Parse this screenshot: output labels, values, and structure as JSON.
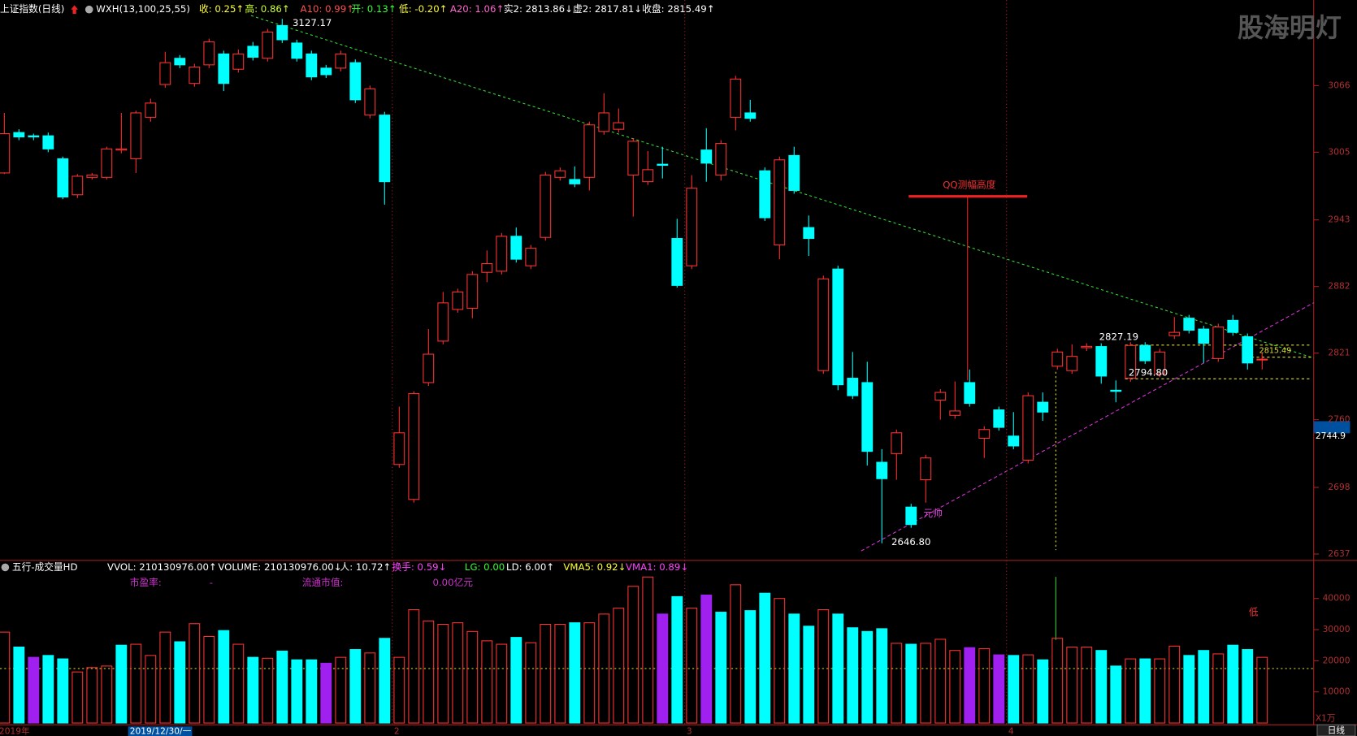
{
  "watermark": "股海明灯",
  "chart_data": [
    {
      "type": "candlestick",
      "title": "上证指数(日线)",
      "indicator_labels": [
        {
          "text": "WXH(13,100,25,55)",
          "color": "#ffffff"
        },
        {
          "text": "收: 0.25↑",
          "color": "#ffff33"
        },
        {
          "text": "高: 0.86↑",
          "color": "#ccff33"
        },
        {
          "text": "A10: 0.99↑",
          "color": "#ff5050"
        },
        {
          "text": "开: 0.13↑",
          "color": "#33ff33"
        },
        {
          "text": "低: -0.20↑",
          "color": "#ffff33"
        },
        {
          "text": "A20: 1.06↑",
          "color": "#ff66cc"
        },
        {
          "text": "实2: 2813.86↓",
          "color": "#ffffff"
        },
        {
          "text": "虚2: 2817.81↓",
          "color": "#ffffff"
        },
        {
          "text": "收盘: 2815.49↑",
          "color": "#ffffff"
        }
      ],
      "colors": {
        "up": "#ff3232",
        "down": "#00ffff"
      },
      "ylim": [
        2633.5,
        3144.4
      ],
      "yticks": [
        3066,
        3005,
        2943,
        2882,
        2821,
        2760,
        2698,
        2637
      ],
      "open": [
        2986,
        3023,
        3020,
        3020,
        2999,
        2966,
        2982,
        2982,
        3007,
        2999,
        3037,
        3067,
        3091,
        3068,
        3085,
        3095,
        3081,
        3102,
        3091,
        3121,
        3105,
        3095,
        3082,
        3082,
        3087,
        3039,
        3039,
        2719,
        2687,
        2794,
        2832,
        2861,
        2862,
        2895,
        2896,
        2928,
        2901,
        2927,
        2982,
        2980,
        2982,
        3024,
        3026,
        2984,
        2978,
        2994,
        2926,
        2901,
        3007,
        2984,
        3037,
        3041,
        2988,
        2920,
        3002,
        2936,
        2805,
        2898,
        2798,
        2794,
        2721,
        2729,
        2680,
        2705,
        2778,
        2764,
        2794,
        2743,
        2769,
        2745,
        2723,
        2776,
        2809,
        2805,
        2826,
        2827,
        2787,
        2798,
        2828,
        2802,
        2837,
        2853,
        2843,
        2816,
        2851,
        2836,
        2815
      ],
      "close": [
        3022,
        3019,
        3019,
        3008,
        2964,
        2983,
        2984,
        3008,
        3008,
        3041,
        3050,
        3087,
        3085,
        3083,
        3106,
        3068,
        3095,
        3092,
        3115,
        3108,
        3091,
        3074,
        3076,
        3095,
        3053,
        3063,
        2978,
        2748,
        2784,
        2820,
        2867,
        2877,
        2893,
        2903,
        2928,
        2907,
        2917,
        2984,
        2988,
        2976,
        3030,
        3041,
        3032,
        3015,
        2989,
        2993,
        2883,
        2972,
        2995,
        3013,
        3072,
        3036,
        2945,
        2998,
        2970,
        2926,
        2889,
        2792,
        2782,
        2731,
        2706,
        2748,
        2664,
        2725,
        2785,
        2768,
        2775,
        2751,
        2753,
        2736,
        2782,
        2767,
        2822,
        2818,
        2827.19,
        2800,
        2786,
        2828,
        2814,
        2822,
        2840,
        2842,
        2830,
        2845,
        2840,
        2812,
        2815.49
      ],
      "high": [
        3041,
        3026,
        3022,
        3023,
        3001,
        2985,
        2986,
        3010,
        3041,
        3043,
        3054,
        3097,
        3094,
        3086,
        3109,
        3098,
        3099,
        3106,
        3118,
        3127.17,
        3108,
        3098,
        3085,
        3098,
        3090,
        3066,
        3042,
        2772,
        2786,
        2843,
        2877,
        2880,
        2896,
        2915,
        2931,
        2936,
        2920,
        2987,
        2991,
        2992,
        3033,
        3059,
        3045,
        3018,
        3006,
        3010,
        2944,
        2984,
        3027,
        3016,
        3075,
        3053,
        2991,
        3001,
        3010,
        2947,
        2892,
        2901,
        2822,
        2813,
        2733,
        2751,
        2683,
        2728,
        2788,
        2795,
        2806,
        2754,
        2772,
        2767,
        2785,
        2785,
        2825,
        2829,
        2830,
        2830,
        2796,
        2831,
        2831,
        2825,
        2854,
        2856,
        2846,
        2848,
        2856,
        2839,
        2821
      ],
      "low": [
        2985,
        3016,
        3016,
        3005,
        2962,
        2963,
        2980,
        2980,
        3004,
        2986,
        3033,
        3064,
        3082,
        3065,
        3082,
        3061,
        3078,
        3089,
        3088,
        3105,
        3088,
        3071,
        3073,
        3079,
        3050,
        3036,
        2957,
        2716,
        2684,
        2791,
        2829,
        2858,
        2853,
        2886,
        2893,
        2904,
        2898,
        2924,
        2979,
        2973,
        2970,
        3021,
        3023,
        2946,
        2975,
        2981,
        2881,
        2898,
        2978,
        2979,
        3025,
        3033,
        2942,
        2907,
        2967,
        2910,
        2802,
        2787,
        2779,
        2718,
        2646.8,
        2705,
        2661,
        2684,
        2760,
        2761,
        2772,
        2725,
        2750,
        2733,
        2720,
        2759,
        2806,
        2802,
        2823,
        2793,
        2776,
        2794.8,
        2811,
        2799,
        2834,
        2839,
        2812,
        2813,
        2837,
        2806,
        2806
      ],
      "annotations": [
        "3127.17",
        "2646.80",
        "QQ测幅高度",
        "元帅",
        "2827.19",
        "2794.80",
        "2815.49"
      ],
      "cursor_price": {
        "value": 2744.9,
        "label": "2744.9"
      }
    },
    {
      "type": "bar",
      "title": "五行-成交量HD",
      "indicator_labels": [
        {
          "text": "VVOL: 210130976.00↑",
          "color": "#ffffff"
        },
        {
          "text": "VOLUME: 210130976.00↓",
          "color": "#ffffff"
        },
        {
          "text": "人: 10.72↑",
          "color": "#ffffff"
        },
        {
          "text": "换手: 0.59↓",
          "color": "#ff44ff"
        },
        {
          "text": "LG: 0.00",
          "color": "#33ff33"
        },
        {
          "text": "LD: 6.00↑",
          "color": "#ffffff"
        },
        {
          "text": "VMA5: 0.92↓",
          "color": "#ffff33"
        },
        {
          "text": "VMA1: 0.89↓",
          "color": "#ff44ff"
        }
      ],
      "info_labels": [
        "市盈率:",
        "-",
        "流通市值:",
        "0.00亿元"
      ],
      "signal_label": "低",
      "unit_label": "X1万",
      "period_label": "日线",
      "ylim": [
        0,
        51667
      ],
      "yticks": [
        40000,
        30000,
        20000,
        10000
      ],
      "categories": [
        "2019年",
        null,
        null,
        null,
        null,
        null,
        null,
        null,
        null,
        null,
        null,
        null,
        null,
        null,
        null,
        null,
        null,
        null,
        null,
        null,
        null,
        null,
        null,
        null,
        null,
        null,
        null,
        "2",
        null,
        null,
        null,
        null,
        null,
        null,
        null,
        null,
        null,
        null,
        null,
        null,
        null,
        null,
        null,
        null,
        null,
        null,
        null,
        "3",
        null,
        null,
        null,
        null,
        null,
        null,
        null,
        null,
        null,
        null,
        null,
        null,
        null,
        null,
        null,
        null,
        null,
        null,
        null,
        null,
        null,
        "4",
        null,
        null,
        null,
        null,
        null,
        null,
        null,
        null,
        null,
        null,
        null,
        null,
        null,
        null,
        null,
        null,
        null
      ],
      "cursor_date": "2019/12/30/一",
      "values": [
        29200,
        24400,
        21100,
        21700,
        20600,
        16400,
        17800,
        18300,
        25000,
        25300,
        21700,
        29200,
        26100,
        31900,
        27800,
        29700,
        25300,
        21100,
        20800,
        23100,
        20300,
        20300,
        19200,
        21100,
        23600,
        22500,
        27200,
        21100,
        36400,
        32800,
        31700,
        32200,
        29400,
        26400,
        25300,
        27500,
        25800,
        31700,
        31700,
        32200,
        32200,
        35000,
        36900,
        43900,
        46900,
        35000,
        40600,
        36900,
        41100,
        35600,
        44400,
        36100,
        41700,
        40000,
        35000,
        31100,
        36400,
        35000,
        30600,
        29400,
        30300,
        25600,
        25300,
        25600,
        26900,
        23300,
        24200,
        23900,
        21900,
        21700,
        21900,
        20300,
        27200,
        24400,
        24400,
        23300,
        18300,
        20600,
        20600,
        20600,
        24700,
        21700,
        23300,
        22200,
        25000,
        23600,
        21100
      ],
      "colors": [
        "#ff3232",
        "#00ffff",
        "#a020f0",
        "#00ffff",
        "#00ffff",
        "#ff3232",
        "#ff3232",
        "#ff3232",
        "#00ffff",
        "#ff3232",
        "#ff3232",
        "#ff3232",
        "#00ffff",
        "#ff3232",
        "#ff3232",
        "#00ffff",
        "#ff3232",
        "#00ffff",
        "#ff3232",
        "#00ffff",
        "#00ffff",
        "#00ffff",
        "#a020f0",
        "#ff3232",
        "#00ffff",
        "#ff3232",
        "#00ffff",
        "#ff3232",
        "#ff3232",
        "#ff3232",
        "#ff3232",
        "#ff3232",
        "#ff3232",
        "#ff3232",
        "#ff3232",
        "#00ffff",
        "#ff3232",
        "#ff3232",
        "#ff3232",
        "#00ffff",
        "#ff3232",
        "#ff3232",
        "#ff3232",
        "#ff3232",
        "#ff3232",
        "#a020f0",
        "#00ffff",
        "#ff3232",
        "#a020f0",
        "#00ffff",
        "#ff3232",
        "#00ffff",
        "#00ffff",
        "#ff3232",
        "#00ffff",
        "#00ffff",
        "#ff3232",
        "#00ffff",
        "#00ffff",
        "#00ffff",
        "#00ffff",
        "#ff3232",
        "#00ffff",
        "#ff3232",
        "#ff3232",
        "#ff3232",
        "#a020f0",
        "#ff3232",
        "#a020f0",
        "#00ffff",
        "#ff3232",
        "#00ffff",
        "#ff3232",
        "#ff3232",
        "#ff3232",
        "#00ffff",
        "#00ffff",
        "#ff3232",
        "#00ffff",
        "#ff3232",
        "#ff3232",
        "#00ffff",
        "#00ffff",
        "#ff3232",
        "#00ffff",
        "#00ffff",
        "#ff3232"
      ]
    }
  ]
}
